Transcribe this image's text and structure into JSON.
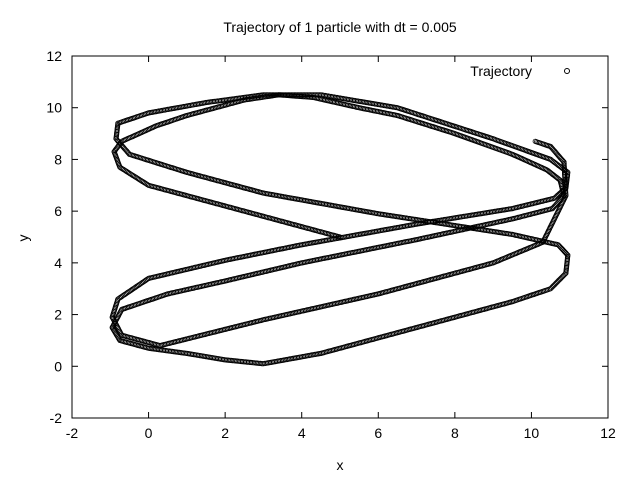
{
  "chart_data": {
    "type": "scatter",
    "title": "Trajectory of 1 particle with dt = 0.005",
    "xlabel": "x",
    "ylabel": "y",
    "xlim": [
      -2,
      12
    ],
    "ylim": [
      -2,
      12
    ],
    "xticks": [
      "-2",
      "0",
      "2",
      "4",
      "6",
      "8",
      "10",
      "12"
    ],
    "yticks": [
      "-2",
      "0",
      "2",
      "4",
      "6",
      "8",
      "10",
      "12"
    ],
    "grid": false,
    "legend_position": "top-right",
    "marker": "open-circle",
    "color": "#000000",
    "series": [
      {
        "name": "Trajectory",
        "x": [
          5.0,
          0.0,
          -0.75,
          -0.9,
          -0.7,
          0.2,
          1.0,
          2.5,
          3.4,
          4.3,
          5.5,
          6.5,
          8.0,
          9.5,
          10.4,
          10.75,
          10.85,
          10.55,
          9.5,
          7.0,
          4.0,
          2.0,
          0.5,
          -0.7,
          -0.95,
          -0.75,
          0.0,
          1.0,
          2.0,
          3.0,
          4.5,
          7.0,
          9.5,
          10.5,
          10.9,
          10.95,
          10.7,
          9.5,
          6.0,
          3.0,
          1.0,
          -0.5,
          -0.85,
          -0.8,
          0.0,
          1.5,
          3.0,
          4.5,
          6.5,
          9.0,
          10.5,
          10.95,
          10.9,
          10.6,
          9.5,
          7.0,
          4.0,
          2.0,
          0.0,
          -0.8,
          -0.95,
          -0.7,
          0.3,
          3.0,
          6.0,
          9.0,
          10.3,
          10.9,
          10.85,
          10.5,
          10.1
        ],
        "y": [
          5.0,
          7.0,
          7.7,
          8.3,
          8.7,
          9.3,
          9.7,
          10.3,
          10.5,
          10.4,
          10.0,
          9.7,
          9.0,
          8.2,
          7.6,
          7.2,
          6.6,
          6.1,
          5.7,
          4.9,
          4.0,
          3.3,
          2.8,
          2.2,
          1.5,
          1.0,
          0.7,
          0.5,
          0.25,
          0.1,
          0.5,
          1.5,
          2.5,
          3.0,
          3.6,
          4.3,
          4.7,
          5.1,
          5.9,
          6.7,
          7.5,
          8.2,
          8.8,
          9.4,
          9.8,
          10.2,
          10.5,
          10.5,
          10.0,
          8.8,
          8.0,
          7.5,
          6.9,
          6.5,
          6.1,
          5.5,
          4.7,
          4.1,
          3.4,
          2.6,
          1.9,
          1.2,
          0.8,
          1.8,
          2.8,
          4.0,
          4.8,
          6.6,
          7.9,
          8.5,
          8.7
        ]
      }
    ]
  }
}
